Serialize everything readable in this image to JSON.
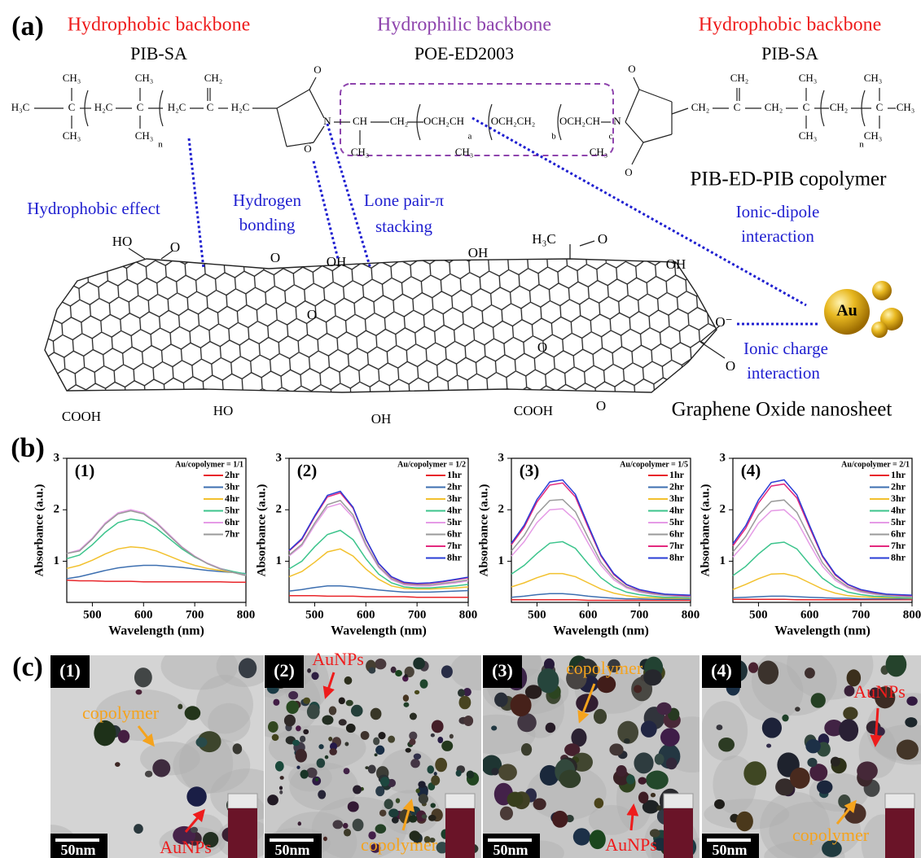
{
  "panel_labels": [
    "(a)",
    "(b)",
    "(c)"
  ],
  "panel_a": {
    "segments": [
      {
        "role": "Hydrophobic backbone",
        "name": "PIB-SA",
        "color": "#ee1c1c"
      },
      {
        "role": "Hydrophilic backbone",
        "name": "POE-ED2003",
        "color": "#8e44ad"
      },
      {
        "role": "Hydrophobic backbone",
        "name": "PIB-SA",
        "color": "#ee1c1c"
      }
    ],
    "copolymer": "PIB-ED-PIB copolymer",
    "interactions": [
      [
        "Hydrophobic effect"
      ],
      [
        "Hydrogen",
        "bonding"
      ],
      [
        "Lone pair-π",
        "stacking"
      ],
      [
        "Ionic-dipole",
        "interaction"
      ],
      [
        "Ionic charge",
        "interaction"
      ]
    ],
    "formula": [
      "H₃C",
      "C",
      "CH₃",
      "CH₃",
      "H₂C",
      "C",
      "CH₃",
      "CH₃",
      "n",
      "H₂C",
      "C",
      "CH₂",
      "H₂C",
      "O",
      "N",
      "O",
      "CH",
      "CH₂",
      "OCH₂CH",
      "CH₃",
      "CH₃",
      "a",
      "OCH₂CH₂",
      "b",
      "OCH₂CH",
      "c",
      "CH₃",
      "N",
      "O",
      "O",
      "CH₂",
      "C",
      "CH₂",
      "CH₂",
      "C",
      "CH₃",
      "CH₃",
      "CH₂",
      "n",
      "C",
      "CH₃",
      "CH₃",
      "CH₃"
    ],
    "sheet_groups": [
      "HO",
      "O",
      "O",
      "OH",
      "OH",
      "H₃C",
      "O",
      "OH",
      "O",
      "O",
      "O⁻",
      "O",
      "COOH",
      "HO",
      "OH",
      "COOH",
      "O"
    ],
    "sheet_label": "Graphene  Oxide nanosheet",
    "au": "Au"
  },
  "chart_data": [
    {
      "type": "line",
      "label": "(1)",
      "legend_title": "Au/copolymer = 1/1",
      "x_label": "Wavelength (nm)",
      "y_label": "Absorbance (a.u.)",
      "x": [
        450,
        475,
        500,
        525,
        550,
        575,
        600,
        625,
        650,
        675,
        700,
        725,
        750,
        775,
        800
      ],
      "xlim": [
        450,
        800
      ],
      "xticks": [
        500,
        600,
        700,
        800
      ],
      "ylim": [
        0.2,
        3
      ],
      "yticks": [
        1,
        2,
        3
      ],
      "legend": "upper right",
      "series": [
        {
          "name": "2hr",
          "color": "#e8262b",
          "values": [
            0.63,
            0.62,
            0.62,
            0.61,
            0.61,
            0.61,
            0.6,
            0.6,
            0.6,
            0.6,
            0.6,
            0.6,
            0.6,
            0.59,
            0.59
          ]
        },
        {
          "name": "3hr",
          "color": "#3d6fb0",
          "values": [
            0.66,
            0.7,
            0.76,
            0.82,
            0.87,
            0.9,
            0.92,
            0.92,
            0.9,
            0.88,
            0.85,
            0.82,
            0.8,
            0.78,
            0.76
          ]
        },
        {
          "name": "4hr",
          "color": "#f2c12e",
          "values": [
            0.86,
            0.92,
            1.02,
            1.14,
            1.24,
            1.28,
            1.26,
            1.2,
            1.1,
            1.0,
            0.92,
            0.86,
            0.82,
            0.78,
            0.75
          ]
        },
        {
          "name": "5hr",
          "color": "#3cc48c",
          "values": [
            1.05,
            1.12,
            1.32,
            1.56,
            1.75,
            1.82,
            1.78,
            1.64,
            1.44,
            1.24,
            1.08,
            0.96,
            0.86,
            0.8,
            0.75
          ]
        },
        {
          "name": "6hr",
          "color": "#e59be6",
          "values": [
            1.15,
            1.22,
            1.45,
            1.74,
            1.94,
            2.0,
            1.94,
            1.76,
            1.52,
            1.28,
            1.1,
            0.96,
            0.86,
            0.78,
            0.73
          ]
        },
        {
          "name": "7hr",
          "color": "#9a9a9a",
          "values": [
            1.15,
            1.2,
            1.43,
            1.72,
            1.92,
            1.98,
            1.92,
            1.74,
            1.5,
            1.27,
            1.09,
            0.95,
            0.85,
            0.78,
            0.72
          ]
        }
      ]
    },
    {
      "type": "line",
      "label": "(2)",
      "legend_title": "Au/copolymer = 1/2",
      "x_label": "Wavelength (nm)",
      "y_label": "Absorbance (a.u.)",
      "x": [
        450,
        475,
        500,
        525,
        550,
        575,
        600,
        625,
        650,
        675,
        700,
        725,
        750,
        775,
        800
      ],
      "xlim": [
        450,
        800
      ],
      "xticks": [
        500,
        600,
        700,
        800
      ],
      "ylim": [
        0.2,
        3
      ],
      "yticks": [
        1,
        2,
        3
      ],
      "legend": "upper right",
      "series": [
        {
          "name": "1hr",
          "color": "#e8262b",
          "values": [
            0.33,
            0.33,
            0.33,
            0.32,
            0.32,
            0.32,
            0.31,
            0.31,
            0.31,
            0.31,
            0.3,
            0.3,
            0.3,
            0.3,
            0.3
          ]
        },
        {
          "name": "2hr",
          "color": "#3d6fb0",
          "values": [
            0.42,
            0.45,
            0.49,
            0.52,
            0.52,
            0.5,
            0.47,
            0.44,
            0.42,
            0.4,
            0.4,
            0.4,
            0.41,
            0.42,
            0.43
          ]
        },
        {
          "name": "3hr",
          "color": "#f2c12e",
          "values": [
            0.7,
            0.8,
            0.98,
            1.18,
            1.24,
            1.1,
            0.85,
            0.65,
            0.52,
            0.47,
            0.46,
            0.46,
            0.47,
            0.48,
            0.5
          ]
        },
        {
          "name": "4hr",
          "color": "#3cc48c",
          "values": [
            0.85,
            1.0,
            1.28,
            1.52,
            1.6,
            1.42,
            1.05,
            0.75,
            0.58,
            0.5,
            0.48,
            0.48,
            0.5,
            0.52,
            0.55
          ]
        },
        {
          "name": "5hr",
          "color": "#e59be6",
          "values": [
            1.1,
            1.3,
            1.7,
            2.05,
            2.12,
            1.85,
            1.3,
            0.88,
            0.64,
            0.54,
            0.52,
            0.52,
            0.55,
            0.58,
            0.62
          ]
        },
        {
          "name": "6hr",
          "color": "#9a9a9a",
          "values": [
            1.12,
            1.33,
            1.74,
            2.1,
            2.18,
            1.9,
            1.33,
            0.9,
            0.66,
            0.56,
            0.54,
            0.54,
            0.57,
            0.6,
            0.64
          ]
        },
        {
          "name": "7hr",
          "color": "#e3297e",
          "values": [
            1.2,
            1.42,
            1.86,
            2.25,
            2.33,
            2.03,
            1.42,
            0.95,
            0.69,
            0.58,
            0.56,
            0.57,
            0.6,
            0.64,
            0.68
          ]
        },
        {
          "name": "8hr",
          "color": "#2a3ed6",
          "values": [
            1.21,
            1.44,
            1.88,
            2.28,
            2.36,
            2.05,
            1.43,
            0.96,
            0.7,
            0.59,
            0.57,
            0.58,
            0.61,
            0.65,
            0.69
          ]
        }
      ]
    },
    {
      "type": "line",
      "label": "(3)",
      "legend_title": "Au/copolymer = 1/5",
      "x_label": "Wavelength (nm)",
      "y_label": "Absorbance (a.u.)",
      "x": [
        450,
        475,
        500,
        525,
        550,
        575,
        600,
        625,
        650,
        675,
        700,
        725,
        750,
        775,
        800
      ],
      "xlim": [
        450,
        800
      ],
      "xticks": [
        500,
        600,
        700,
        800
      ],
      "ylim": [
        0.2,
        3
      ],
      "yticks": [
        1,
        2,
        3
      ],
      "legend": "upper right",
      "series": [
        {
          "name": "1hr",
          "color": "#e8262b",
          "values": [
            0.25,
            0.25,
            0.25,
            0.25,
            0.25,
            0.25,
            0.24,
            0.24,
            0.24,
            0.24,
            0.24,
            0.24,
            0.24,
            0.24,
            0.24
          ]
        },
        {
          "name": "2hr",
          "color": "#3d6fb0",
          "values": [
            0.3,
            0.32,
            0.35,
            0.37,
            0.37,
            0.35,
            0.32,
            0.3,
            0.28,
            0.27,
            0.27,
            0.26,
            0.26,
            0.26,
            0.26
          ]
        },
        {
          "name": "3hr",
          "color": "#f2c12e",
          "values": [
            0.5,
            0.58,
            0.68,
            0.76,
            0.76,
            0.7,
            0.58,
            0.46,
            0.38,
            0.33,
            0.3,
            0.29,
            0.28,
            0.28,
            0.28
          ]
        },
        {
          "name": "4hr",
          "color": "#3cc48c",
          "values": [
            0.75,
            0.92,
            1.15,
            1.35,
            1.38,
            1.25,
            0.95,
            0.68,
            0.5,
            0.4,
            0.35,
            0.32,
            0.3,
            0.3,
            0.29
          ]
        },
        {
          "name": "5hr",
          "color": "#e59be6",
          "values": [
            1.1,
            1.38,
            1.75,
            2.0,
            2.02,
            1.8,
            1.35,
            0.92,
            0.64,
            0.48,
            0.4,
            0.36,
            0.33,
            0.32,
            0.31
          ]
        },
        {
          "name": "6hr",
          "color": "#9a9a9a",
          "values": [
            1.2,
            1.5,
            1.92,
            2.18,
            2.2,
            1.96,
            1.46,
            0.98,
            0.68,
            0.5,
            0.42,
            0.37,
            0.34,
            0.33,
            0.32
          ]
        },
        {
          "name": "7hr",
          "color": "#e3297e",
          "values": [
            1.32,
            1.66,
            2.15,
            2.48,
            2.52,
            2.25,
            1.66,
            1.1,
            0.74,
            0.54,
            0.44,
            0.39,
            0.36,
            0.34,
            0.33
          ]
        },
        {
          "name": "8hr",
          "color": "#2a3ed6",
          "values": [
            1.35,
            1.7,
            2.2,
            2.54,
            2.58,
            2.3,
            1.7,
            1.12,
            0.76,
            0.55,
            0.45,
            0.4,
            0.36,
            0.35,
            0.34
          ]
        }
      ]
    },
    {
      "type": "line",
      "label": "(4)",
      "legend_title": "Au/copolymer = 2/1",
      "x_label": "Wavelength (nm)",
      "y_label": "Absorbance (a.u.)",
      "x": [
        450,
        475,
        500,
        525,
        550,
        575,
        600,
        625,
        650,
        675,
        700,
        725,
        750,
        775,
        800
      ],
      "xlim": [
        450,
        800
      ],
      "xticks": [
        500,
        600,
        700,
        800
      ],
      "ylim": [
        0.2,
        3
      ],
      "yticks": [
        1,
        2,
        3
      ],
      "legend": "upper right",
      "series": [
        {
          "name": "1hr",
          "color": "#e8262b",
          "values": [
            0.26,
            0.26,
            0.26,
            0.26,
            0.26,
            0.25,
            0.25,
            0.25,
            0.25,
            0.25,
            0.25,
            0.25,
            0.25,
            0.25,
            0.25
          ]
        },
        {
          "name": "2hr",
          "color": "#3d6fb0",
          "values": [
            0.29,
            0.3,
            0.31,
            0.32,
            0.32,
            0.31,
            0.3,
            0.29,
            0.28,
            0.28,
            0.27,
            0.27,
            0.27,
            0.27,
            0.27
          ]
        },
        {
          "name": "3hr",
          "color": "#f2c12e",
          "values": [
            0.45,
            0.55,
            0.66,
            0.75,
            0.76,
            0.7,
            0.58,
            0.46,
            0.38,
            0.33,
            0.31,
            0.3,
            0.29,
            0.29,
            0.28
          ]
        },
        {
          "name": "4hr",
          "color": "#3cc48c",
          "values": [
            0.72,
            0.9,
            1.14,
            1.34,
            1.37,
            1.24,
            0.94,
            0.67,
            0.5,
            0.4,
            0.35,
            0.32,
            0.31,
            0.3,
            0.29
          ]
        },
        {
          "name": "5hr",
          "color": "#e59be6",
          "values": [
            1.08,
            1.36,
            1.74,
            1.98,
            2.0,
            1.78,
            1.33,
            0.9,
            0.63,
            0.48,
            0.4,
            0.36,
            0.33,
            0.32,
            0.31
          ]
        },
        {
          "name": "6hr",
          "color": "#9a9a9a",
          "values": [
            1.18,
            1.48,
            1.9,
            2.16,
            2.19,
            1.95,
            1.45,
            0.97,
            0.67,
            0.5,
            0.42,
            0.37,
            0.34,
            0.33,
            0.32
          ]
        },
        {
          "name": "7hr",
          "color": "#e3297e",
          "values": [
            1.3,
            1.64,
            2.13,
            2.46,
            2.5,
            2.23,
            1.65,
            1.09,
            0.73,
            0.54,
            0.44,
            0.39,
            0.36,
            0.34,
            0.33
          ]
        },
        {
          "name": "8hr",
          "color": "#2a3ed6",
          "values": [
            1.34,
            1.69,
            2.19,
            2.53,
            2.58,
            2.29,
            1.69,
            1.11,
            0.75,
            0.55,
            0.45,
            0.4,
            0.36,
            0.35,
            0.34
          ]
        }
      ]
    }
  ],
  "panel_c": {
    "images": [
      {
        "label": "(1)",
        "scale": "50nm",
        "annotations": [
          {
            "text": "copolymer",
            "color": "#f5a31d"
          },
          {
            "text": "AuNPs",
            "color": "#ee1c1c"
          }
        ]
      },
      {
        "label": "(2)",
        "scale": "50nm",
        "annotations": [
          {
            "text": "AuNPs",
            "color": "#ee1c1c"
          },
          {
            "text": "copolymer",
            "color": "#f5a31d"
          }
        ]
      },
      {
        "label": "(3)",
        "scale": "50nm",
        "annotations": [
          {
            "text": "copolymer",
            "color": "#f5a31d"
          },
          {
            "text": "AuNPs",
            "color": "#ee1c1c"
          }
        ]
      },
      {
        "label": "(4)",
        "scale": "50nm",
        "annotations": [
          {
            "text": "AuNPs",
            "color": "#ee1c1c"
          },
          {
            "text": "copolymer",
            "color": "#f5a31d"
          }
        ]
      }
    ]
  }
}
